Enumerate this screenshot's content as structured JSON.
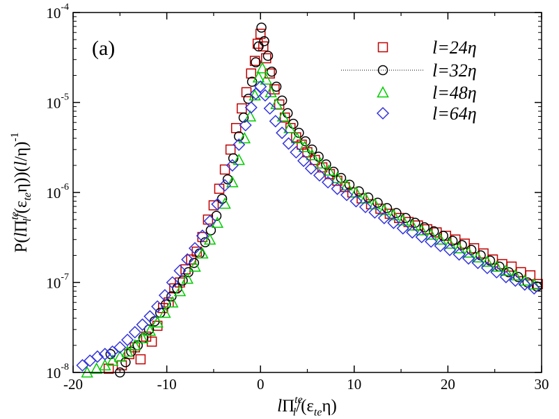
{
  "chart_data": {
    "type": "scatter",
    "panel_label": "(a)",
    "xlabel": "lΠ^te_l/(ε_te η)",
    "ylabel": "P(lΠ^te_l/(ε_te η))(l/η)^-1",
    "xlabel_parts": {
      "l": "l",
      "pi": "Π",
      "sup": "te",
      "sub_l": "l",
      "mid": "/(ε",
      "sub_te": "te",
      "end": "η)"
    },
    "ylabel_parts": {
      "p": "P(",
      "l": "l",
      "pi": "Π",
      "sup": "te",
      "sub_l": "l",
      "mid": "/(ε",
      "sub_te": "te",
      "after": "η))(",
      "l2": "l",
      "end": "/η)",
      "exp": "-1"
    },
    "xlim": [
      -20,
      30
    ],
    "ylim": [
      1e-08,
      0.0001
    ],
    "yscale": "log",
    "x_ticks": [
      -20,
      -10,
      0,
      10,
      20,
      30
    ],
    "x_tick_labels": [
      "-20",
      "-10",
      "0",
      "10",
      "20",
      "30"
    ],
    "y_ticks": [
      1e-08,
      1e-07,
      1e-06,
      1e-05,
      0.0001
    ],
    "y_tick_labels": [
      {
        "base": "10",
        "exp": "-8"
      },
      {
        "base": "10",
        "exp": "-7"
      },
      {
        "base": "10",
        "exp": "-6"
      },
      {
        "base": "10",
        "exp": "-5"
      },
      {
        "base": "10",
        "exp": "-4"
      }
    ],
    "legend_position": "top-right",
    "series": [
      {
        "name": "l=24η",
        "label_l": "l",
        "label_rest": "=24η",
        "marker": "square",
        "color": "#c00000",
        "values_x": [
          -16.2,
          -14.8,
          -14.0,
          -13.4,
          -12.8,
          -12.2,
          -11.6,
          -11.0,
          -10.4,
          -9.8,
          -9.2,
          -8.6,
          -8.0,
          -7.4,
          -6.8,
          -6.2,
          -5.6,
          -5.0,
          -4.4,
          -3.8,
          -3.2,
          -2.6,
          -2.0,
          -1.5,
          -1.0,
          -0.6,
          -0.3,
          0.0,
          0.3,
          0.6,
          1.0,
          1.5,
          2.0,
          2.6,
          3.2,
          3.8,
          4.4,
          5.0,
          5.8,
          6.6,
          7.4,
          8.2,
          9.0,
          9.8,
          10.8,
          11.8,
          12.8,
          13.8,
          14.8,
          15.8,
          16.8,
          17.8,
          18.8,
          19.8,
          20.8,
          21.8,
          22.8,
          23.8,
          24.8,
          25.8,
          26.8,
          27.8,
          28.8,
          29.6
        ],
        "values_y": [
          1.1e-08,
          1.2e-08,
          1.6e-08,
          1.9e-08,
          1.4e-08,
          2.5e-08,
          2.2e-08,
          3.3e-08,
          5.2e-08,
          6e-08,
          8.6e-08,
          1e-07,
          1.4e-07,
          1.8e-07,
          2.2e-07,
          3.2e-07,
          5e-07,
          7.2e-07,
          1.1e-06,
          1.8e-06,
          3e-06,
          5.2e-06,
          8.6e-06,
          1.3e-05,
          2.1e-05,
          2.9e-05,
          4.5e-05,
          5.8e-05,
          4.2e-05,
          3.1e-05,
          2.1e-05,
          1.4e-05,
          9.5e-06,
          6.8e-06,
          5.2e-06,
          4.1e-06,
          3.4e-06,
          2.8e-06,
          2.3e-06,
          1.9e-06,
          1.6e-06,
          1.35e-06,
          1.15e-06,
          1e-06,
          8.6e-07,
          7.4e-07,
          6.6e-07,
          5.8e-07,
          5.2e-07,
          4.7e-07,
          4.3e-07,
          3.9e-07,
          3.6e-07,
          3.3e-07,
          3e-07,
          2.7e-07,
          2.4e-07,
          2.1e-07,
          1.8e-07,
          1.6e-07,
          1.5e-07,
          1.3e-07,
          1.2e-07,
          9.6e-08
        ]
      },
      {
        "name": "l=32η",
        "label_l": "l",
        "label_rest": "=32η",
        "marker": "circle",
        "color": "#000000",
        "line": "dotted",
        "values_x": [
          -16.0,
          -15.0,
          -14.4,
          -13.8,
          -13.1,
          -12.5,
          -11.9,
          -11.3,
          -10.7,
          -10.1,
          -9.5,
          -8.9,
          -8.3,
          -7.7,
          -7.1,
          -6.5,
          -5.9,
          -5.3,
          -4.7,
          -4.1,
          -3.5,
          -2.9,
          -2.3,
          -1.8,
          -1.3,
          -0.9,
          -0.5,
          -0.2,
          0.1,
          0.4,
          0.8,
          1.2,
          1.7,
          2.3,
          2.9,
          3.5,
          4.1,
          4.8,
          5.5,
          6.2,
          7.0,
          7.8,
          8.6,
          9.5,
          10.5,
          11.5,
          12.5,
          13.5,
          14.5,
          15.5,
          16.5,
          17.5,
          18.5,
          19.5,
          20.5,
          21.5,
          22.5,
          23.5,
          24.5,
          25.5,
          26.5,
          27.5,
          28.5,
          29.5
        ],
        "values_y": [
          1.6e-08,
          1e-08,
          1.3e-08,
          1.7e-08,
          2e-08,
          2.4e-08,
          3e-08,
          3.7e-08,
          4.6e-08,
          5.7e-08,
          7e-08,
          8.6e-08,
          1.05e-07,
          1.3e-07,
          1.65e-07,
          2.1e-07,
          2.8e-07,
          3.8e-07,
          5.5e-07,
          8.5e-07,
          1.4e-06,
          2.4e-06,
          4.2e-06,
          6.8e-06,
          1.1e-05,
          1.7e-05,
          2.8e-05,
          4.2e-05,
          6.8e-05,
          4.8e-05,
          3.3e-05,
          2.2e-05,
          1.5e-05,
          1.05e-05,
          7.6e-06,
          5.8e-06,
          4.6e-06,
          3.7e-06,
          3e-06,
          2.5e-06,
          2.05e-06,
          1.7e-06,
          1.45e-06,
          1.22e-06,
          1.03e-06,
          8.8e-07,
          7.7e-07,
          6.7e-07,
          5.9e-07,
          5.2e-07,
          4.6e-07,
          4.1e-07,
          3.7e-07,
          3.3e-07,
          2.9e-07,
          2.6e-07,
          2.3e-07,
          2e-07,
          1.75e-07,
          1.5e-07,
          1.3e-07,
          1.15e-07,
          1e-07,
          9e-08
        ]
      },
      {
        "name": "l=48η",
        "label_l": "l",
        "label_rest": "=48η",
        "marker": "triangle",
        "color": "#00cc00",
        "values_x": [
          -18.5,
          -17.5,
          -16.6,
          -15.8,
          -15.0,
          -14.2,
          -13.4,
          -12.6,
          -11.8,
          -11.0,
          -10.2,
          -9.4,
          -8.6,
          -7.8,
          -7.0,
          -6.2,
          -5.4,
          -4.6,
          -3.8,
          -3.0,
          -2.3,
          -1.7,
          -1.1,
          -0.6,
          -0.2,
          0.2,
          0.6,
          1.1,
          1.7,
          2.4,
          3.1,
          3.9,
          4.7,
          5.5,
          6.4,
          7.3,
          8.2,
          9.2,
          10.2,
          11.2,
          12.2,
          13.2,
          14.2,
          15.2,
          16.2,
          17.2,
          18.2,
          19.2,
          20.2,
          21.2,
          22.2,
          23.2,
          24.2,
          25.2,
          26.2,
          27.2,
          28.2,
          29.2
        ],
        "values_y": [
          1e-08,
          1.1e-08,
          1.2e-08,
          1.35e-08,
          1.5e-08,
          1.7e-08,
          2e-08,
          2.4e-08,
          2.9e-08,
          3.6e-08,
          4.6e-08,
          6e-08,
          8e-08,
          1.1e-07,
          1.5e-07,
          2.1e-07,
          3e-07,
          4.6e-07,
          7.5e-07,
          1.3e-06,
          2.3e-06,
          4e-06,
          7e-06,
          1.2e-05,
          1.9e-05,
          2.4e-05,
          1.8e-05,
          1.3e-05,
          9.6e-06,
          7e-06,
          5.2e-06,
          4e-06,
          3.2e-06,
          2.6e-06,
          2.1e-06,
          1.75e-06,
          1.45e-06,
          1.2e-06,
          1e-06,
          8.6e-07,
          7.4e-07,
          6.4e-07,
          5.6e-07,
          4.9e-07,
          4.3e-07,
          3.8e-07,
          3.4e-07,
          3e-07,
          2.7e-07,
          2.4e-07,
          2.15e-07,
          1.9e-07,
          1.7e-07,
          1.5e-07,
          1.35e-07,
          1.2e-07,
          1.05e-07,
          9.5e-08
        ]
      },
      {
        "name": "l=64η",
        "label_l": "l",
        "label_rest": "=64η",
        "marker": "diamond",
        "color": "#3333dd",
        "values_x": [
          -19.0,
          -18.2,
          -17.4,
          -16.6,
          -15.8,
          -15.0,
          -14.2,
          -13.4,
          -12.6,
          -11.8,
          -11.0,
          -10.2,
          -9.4,
          -8.6,
          -7.8,
          -7.0,
          -6.2,
          -5.4,
          -4.6,
          -3.8,
          -3.0,
          -2.3,
          -1.6,
          -1.0,
          -0.5,
          0.0,
          0.5,
          1.0,
          1.6,
          2.3,
          3.0,
          3.8,
          4.6,
          5.4,
          6.3,
          7.2,
          8.2,
          9.2,
          10.2,
          11.2,
          12.2,
          13.2,
          14.2,
          15.2,
          16.2,
          17.2,
          18.2,
          19.2,
          20.2,
          21.2,
          22.2,
          23.2,
          24.2,
          25.2,
          26.2,
          27.2,
          28.2,
          29.2
        ],
        "values_y": [
          1.2e-08,
          1.35e-08,
          1.5e-08,
          1.6e-08,
          1.7e-08,
          1.9e-08,
          2.3e-08,
          2.8e-08,
          3.4e-08,
          4.2e-08,
          5.4e-08,
          7.2e-08,
          1e-07,
          1.35e-07,
          1.8e-07,
          2.4e-07,
          3.3e-07,
          4.8e-07,
          7.4e-07,
          1.2e-06,
          2e-06,
          3.4e-06,
          5.6e-06,
          8.8e-06,
          1.25e-05,
          1.5e-05,
          1.2e-05,
          8.6e-06,
          6.2e-06,
          4.6e-06,
          3.5e-06,
          2.8e-06,
          2.25e-06,
          1.85e-06,
          1.55e-06,
          1.3e-06,
          1.1e-06,
          9.4e-07,
          8e-07,
          6.9e-07,
          6e-07,
          5.2e-07,
          4.6e-07,
          4e-07,
          3.6e-07,
          3.2e-07,
          2.85e-07,
          2.55e-07,
          2.3e-07,
          2.05e-07,
          1.85e-07,
          1.65e-07,
          1.45e-07,
          1.3e-07,
          1.15e-07,
          1.05e-07,
          9.5e-08,
          8.6e-08
        ]
      }
    ]
  }
}
